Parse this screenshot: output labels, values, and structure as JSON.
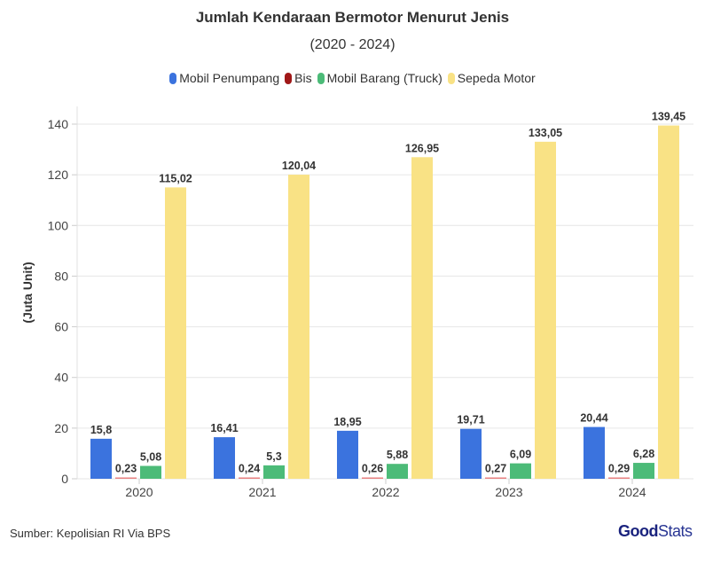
{
  "chart_data": {
    "type": "bar",
    "title": "Jumlah Kendaraan Bermotor Menurut Jenis",
    "subtitle": "(2020 - 2024)",
    "ylabel": "(Juta Unit)",
    "xlabel": "",
    "ylim": [
      0,
      147
    ],
    "yticks": [
      0,
      20,
      40,
      60,
      80,
      100,
      120,
      140
    ],
    "grid": true,
    "legend_position": "top",
    "categories": [
      "2020",
      "2021",
      "2022",
      "2023",
      "2024"
    ],
    "series": [
      {
        "name": "Mobil Penumpang",
        "color": "#3b73de",
        "values": [
          15.8,
          16.41,
          18.95,
          19.71,
          20.44
        ],
        "labels": [
          "15,8",
          "16,41",
          "18,95",
          "19,71",
          "20,44"
        ]
      },
      {
        "name": "Bis",
        "color": "#a01818",
        "bar_color": "#e88080",
        "values": [
          0.23,
          0.24,
          0.26,
          0.27,
          0.29
        ],
        "labels": [
          "0,23",
          "0,24",
          "0,26",
          "0,27",
          "0,29"
        ]
      },
      {
        "name": "Mobil Barang (Truck)",
        "color": "#4cbb78",
        "values": [
          5.08,
          5.3,
          5.88,
          6.09,
          6.28
        ],
        "labels": [
          "5,08",
          "5,3",
          "5,88",
          "6,09",
          "6,28"
        ]
      },
      {
        "name": "Sepeda Motor",
        "color": "#f9e285",
        "values": [
          115.02,
          120.04,
          126.95,
          133.05,
          139.45
        ],
        "labels": [
          "115,02",
          "120,04",
          "126,95",
          "133,05",
          "139,45"
        ]
      }
    ]
  },
  "source": "Sumber: Kepolisian RI Via BPS",
  "logo": {
    "bold": "Good",
    "thin": "Stats"
  }
}
